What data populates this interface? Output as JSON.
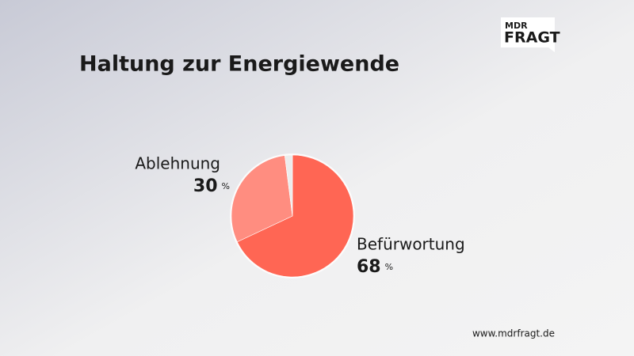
{
  "chart_data": {
    "type": "pie",
    "title": "Haltung zur Energiewende",
    "categories": [
      "Befürwortung",
      "Ablehnung",
      null
    ],
    "values": [
      68,
      30,
      2
    ],
    "colors": [
      "#ff6654",
      "#ff8d80",
      "#ececec"
    ],
    "unit": "%",
    "logo": [
      "MDR",
      "FRAGT"
    ],
    "source": "www.mdrfragt.de"
  }
}
